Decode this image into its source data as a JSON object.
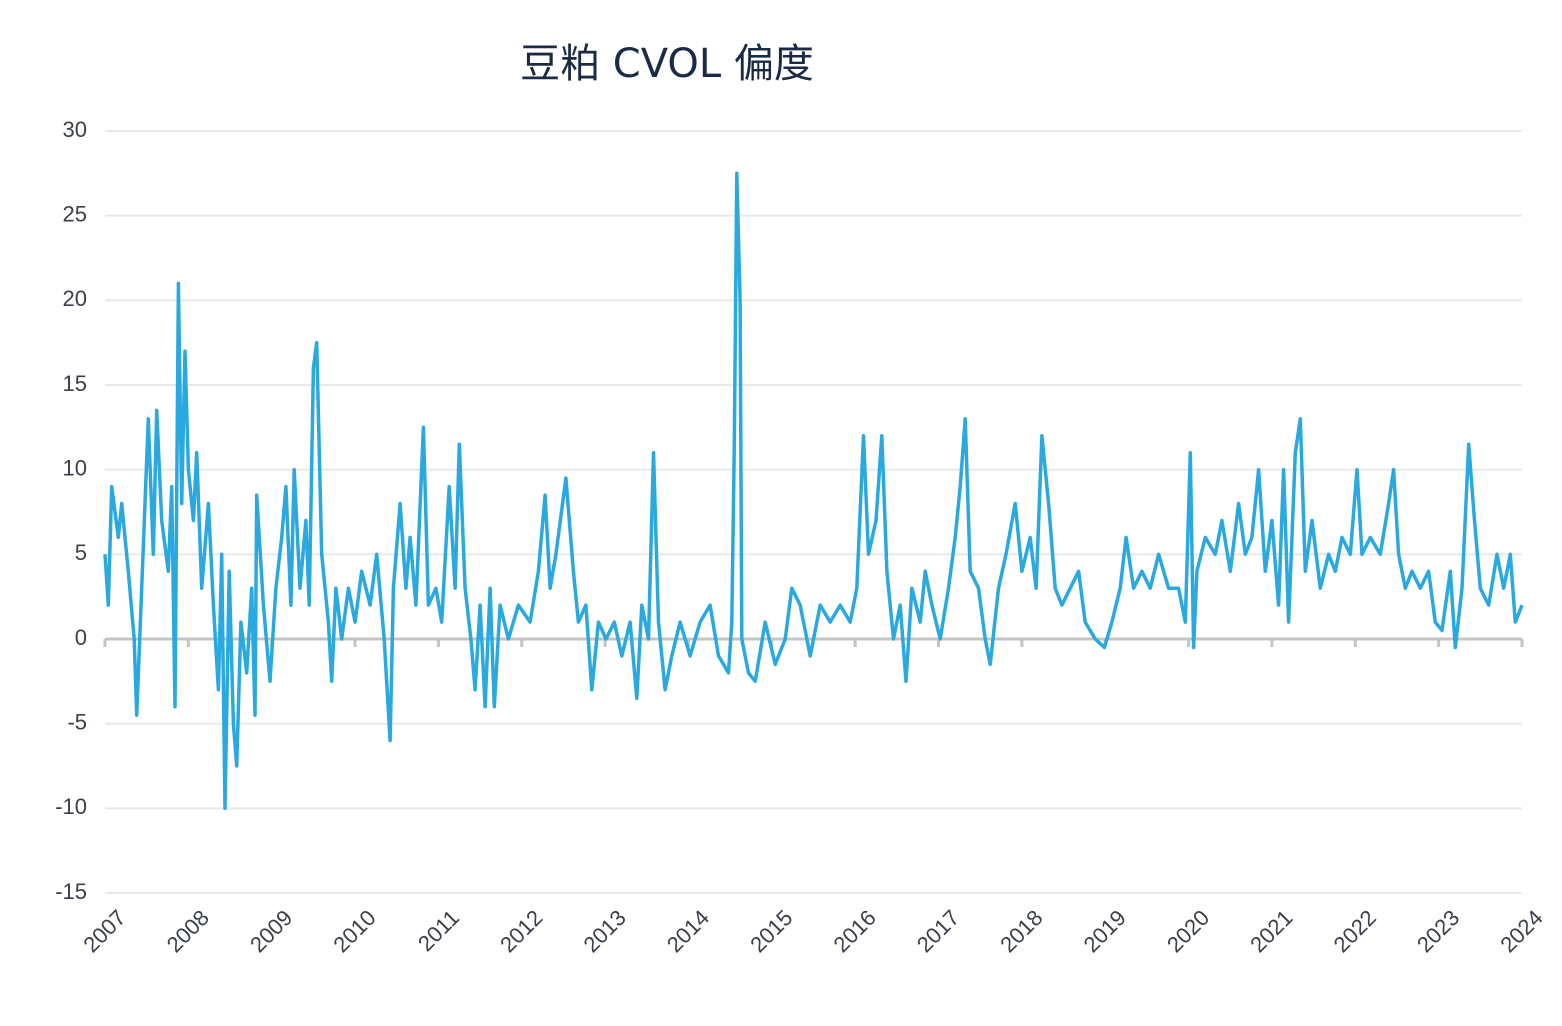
{
  "chart_data": {
    "type": "line",
    "title": "豆粕 CVOL 偏度",
    "color": "#29a9e0",
    "grid": true,
    "xlim": [
      2007,
      2024
    ],
    "xticks": [
      2007,
      2008,
      2009,
      2010,
      2011,
      2012,
      2013,
      2014,
      2015,
      2016,
      2017,
      2018,
      2019,
      2020,
      2021,
      2022,
      2023,
      2024
    ],
    "ylim": [
      -15,
      30
    ],
    "yticks": [
      -15,
      -10,
      -5,
      0,
      5,
      10,
      15,
      20,
      25,
      30
    ],
    "x": [
      2007.0,
      2007.04,
      2007.08,
      2007.16,
      2007.2,
      2007.28,
      2007.35,
      2007.38,
      2007.44,
      2007.52,
      2007.58,
      2007.62,
      2007.68,
      2007.76,
      2007.8,
      2007.84,
      2007.88,
      2007.92,
      2007.96,
      2008.0,
      2008.06,
      2008.1,
      2008.16,
      2008.24,
      2008.3,
      2008.36,
      2008.4,
      2008.44,
      2008.49,
      2008.54,
      2008.58,
      2008.63,
      2008.7,
      2008.76,
      2008.8,
      2008.82,
      2008.9,
      2008.98,
      2009.05,
      2009.12,
      2009.17,
      2009.23,
      2009.27,
      2009.34,
      2009.41,
      2009.45,
      2009.5,
      2009.54,
      2009.6,
      2009.68,
      2009.72,
      2009.77,
      2009.84,
      2009.92,
      2010.0,
      2010.08,
      2010.18,
      2010.26,
      2010.35,
      2010.42,
      2010.46,
      2010.54,
      2010.61,
      2010.66,
      2010.73,
      2010.82,
      2010.88,
      2010.97,
      2011.04,
      2011.13,
      2011.2,
      2011.25,
      2011.32,
      2011.39,
      2011.44,
      2011.5,
      2011.56,
      2011.62,
      2011.67,
      2011.74,
      2011.84,
      2011.96,
      2012.1,
      2012.2,
      2012.28,
      2012.34,
      2012.41,
      2012.53,
      2012.62,
      2012.68,
      2012.77,
      2012.84,
      2012.92,
      2013.01,
      2013.11,
      2013.2,
      2013.3,
      2013.38,
      2013.44,
      2013.52,
      2013.58,
      2013.64,
      2013.72,
      2013.8,
      2013.9,
      2014.02,
      2014.14,
      2014.26,
      2014.36,
      2014.48,
      2014.52,
      2014.55,
      2014.58,
      2014.62,
      2014.64,
      2014.72,
      2014.8,
      2014.92,
      2015.04,
      2015.16,
      2015.24,
      2015.34,
      2015.46,
      2015.58,
      2015.7,
      2015.82,
      2015.94,
      2016.02,
      2016.1,
      2016.16,
      2016.25,
      2016.32,
      2016.38,
      2016.46,
      2016.54,
      2016.61,
      2016.68,
      2016.78,
      2016.84,
      2016.92,
      2017.02,
      2017.12,
      2017.2,
      2017.26,
      2017.32,
      2017.38,
      2017.48,
      2017.56,
      2017.62,
      2017.72,
      2017.81,
      2017.92,
      2018.0,
      2018.1,
      2018.17,
      2018.24,
      2018.32,
      2018.4,
      2018.48,
      2018.58,
      2018.68,
      2018.76,
      2018.88,
      2018.99,
      2019.08,
      2019.18,
      2019.25,
      2019.34,
      2019.44,
      2019.54,
      2019.64,
      2019.76,
      2019.88,
      2019.96,
      2020.02,
      2020.06,
      2020.1,
      2020.2,
      2020.32,
      2020.4,
      2020.5,
      2020.6,
      2020.68,
      2020.76,
      2020.84,
      2020.92,
      2021.0,
      2021.08,
      2021.14,
      2021.2,
      2021.28,
      2021.34,
      2021.4,
      2021.48,
      2021.58,
      2021.68,
      2021.76,
      2021.84,
      2021.94,
      2022.02,
      2022.08,
      2022.18,
      2022.3,
      2022.4,
      2022.46,
      2022.52,
      2022.6,
      2022.68,
      2022.78,
      2022.88,
      2022.96,
      2023.04,
      2023.14,
      2023.2,
      2023.28,
      2023.36,
      2023.43,
      2023.5,
      2023.6,
      2023.7,
      2023.78,
      2023.86,
      2023.92,
      2024.0
    ],
    "values": [
      5,
      2,
      9,
      6,
      8,
      4,
      0,
      -4.5,
      3,
      13,
      5,
      13.5,
      7,
      4,
      9,
      -4,
      21,
      8,
      17,
      10,
      7,
      11,
      3,
      8,
      2,
      -3,
      5,
      -10,
      4,
      -5,
      -7.5,
      1,
      -2,
      3,
      -4.5,
      8.5,
      2,
      -2.5,
      3,
      6,
      9,
      2,
      10,
      3,
      7,
      2,
      16,
      17.5,
      5,
      1,
      -2.5,
      3,
      0,
      3,
      1,
      4,
      2,
      5,
      0,
      -6,
      3,
      8,
      3,
      6,
      2,
      12.5,
      2,
      3,
      1,
      9,
      3,
      11.5,
      3,
      0,
      -3,
      2,
      -4,
      3,
      -4,
      2,
      0,
      2,
      1,
      4,
      8.5,
      3,
      5,
      9.5,
      4,
      1,
      2,
      -3,
      1,
      0,
      1,
      -1,
      1,
      -3.5,
      2,
      0,
      11,
      1,
      -3,
      -1,
      1,
      -1,
      1,
      2,
      -1,
      -2,
      1,
      11.5,
      27.5,
      20,
      0,
      -2,
      -2.5,
      1,
      -1.5,
      0,
      3,
      2,
      -1,
      2,
      1,
      2,
      1,
      3,
      12,
      5,
      7,
      12,
      4,
      0,
      2,
      -2.5,
      3,
      1,
      4,
      2,
      0,
      3,
      6,
      9,
      13,
      4,
      3,
      0,
      -1.5,
      3,
      5,
      8,
      4,
      6,
      3,
      12,
      8,
      3,
      2,
      3,
      4,
      1,
      0,
      -0.5,
      1,
      3,
      6,
      3,
      4,
      3,
      5,
      3,
      3,
      1,
      11,
      -0.5,
      4,
      6,
      5,
      7,
      4,
      8,
      5,
      6,
      10,
      4,
      7,
      2,
      10,
      1,
      11,
      13,
      4,
      7,
      3,
      5,
      4,
      6,
      5,
      10,
      5,
      6,
      5,
      8,
      10,
      5,
      3,
      4,
      3,
      4,
      1,
      0.5,
      4,
      -0.5,
      3,
      11.5,
      7,
      3,
      2,
      5,
      3,
      5,
      1,
      2
    ]
  }
}
